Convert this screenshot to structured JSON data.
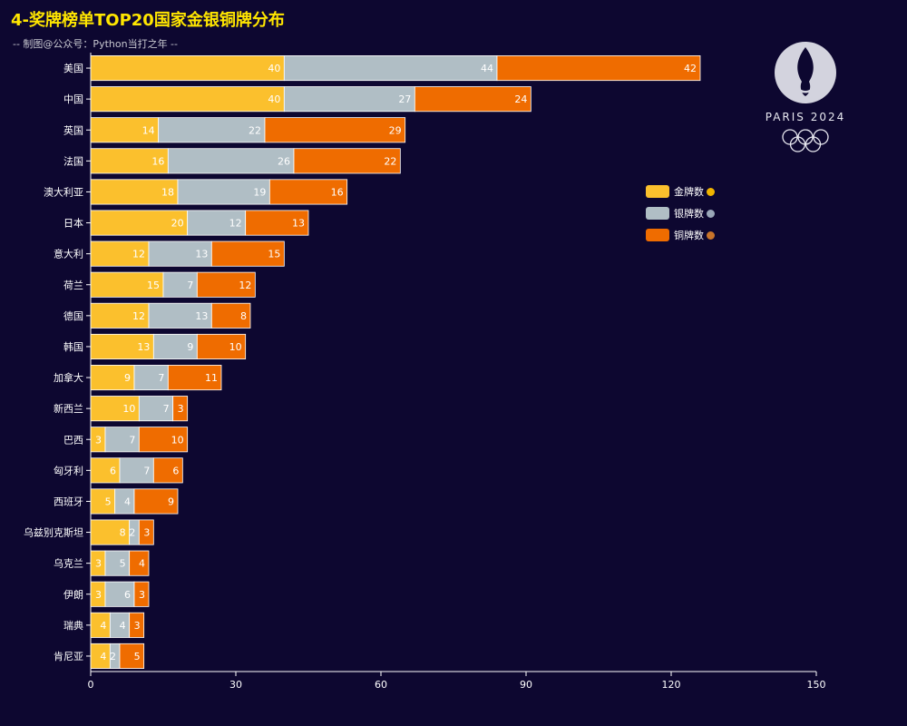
{
  "title": "4-奖牌榜单TOP20国家金银铜牌分布",
  "subtitle": "-- 制图@公众号：Python当打之年 --",
  "logo": {
    "text": "PARIS 2024"
  },
  "colors": {
    "gold": "#fbc02d",
    "silver": "#b0bec5",
    "bronze": "#ef6c00",
    "background": "#0d0730"
  },
  "chart_data": {
    "type": "bar",
    "orientation": "horizontal",
    "stacked": true,
    "categories": [
      "美国",
      "中国",
      "英国",
      "法国",
      "澳大利亚",
      "日本",
      "意大利",
      "荷兰",
      "德国",
      "韩国",
      "加拿大",
      "新西兰",
      "巴西",
      "匈牙利",
      "西班牙",
      "乌兹别克斯坦",
      "乌克兰",
      "伊朗",
      "瑞典",
      "肯尼亚"
    ],
    "series": [
      {
        "name": "金牌数",
        "icon": "gold-medal-icon",
        "color": "#fbc02d",
        "values": [
          40,
          40,
          14,
          16,
          18,
          20,
          12,
          15,
          12,
          13,
          9,
          10,
          3,
          6,
          5,
          8,
          3,
          3,
          4,
          4
        ]
      },
      {
        "name": "银牌数",
        "icon": "silver-medal-icon",
        "color": "#b0bec5",
        "values": [
          44,
          27,
          22,
          26,
          19,
          12,
          13,
          7,
          13,
          9,
          7,
          7,
          7,
          7,
          4,
          2,
          5,
          6,
          4,
          2
        ]
      },
      {
        "name": "铜牌数",
        "icon": "bronze-medal-icon",
        "color": "#ef6c00",
        "values": [
          42,
          24,
          29,
          22,
          16,
          13,
          15,
          12,
          8,
          10,
          11,
          3,
          10,
          6,
          9,
          3,
          4,
          3,
          3,
          5
        ]
      }
    ],
    "xlim": [
      0,
      150
    ],
    "xticks": [
      0,
      30,
      60,
      90,
      120,
      150
    ],
    "legend_position": "right",
    "grid": false
  }
}
